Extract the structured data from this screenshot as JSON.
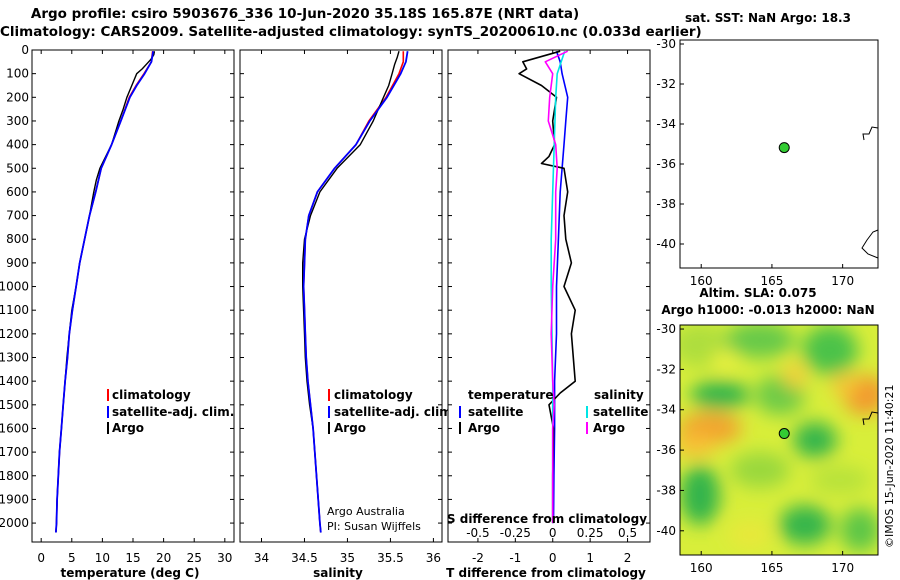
{
  "header": {
    "title_line1": "Argo profile: csiro 5903676_336 10-Jun-2020 35.18S 165.87E (NRT data)",
    "title_line2": "Climatology: CARS2009. Satellite-adjusted climatology: synTS_20200610.nc (0.033d earlier)"
  },
  "colors": {
    "climatology": "#ff0000",
    "satellite": "#0000ff",
    "argo": "#000000",
    "s_satellite": "#00e5e5",
    "s_argo": "#ff00ff",
    "float_marker": "#33cc33"
  },
  "credits": {
    "line1": "Argo Australia",
    "line2": "PI: Susan Wijffels"
  },
  "watermark": "©IMOS 15-Jun-2020 11:40:21",
  "chart_data": [
    {
      "type": "line",
      "name": "temperature-profile",
      "xlabel": "temperature (deg C)",
      "ylabel": "",
      "xlim": [
        -1.5,
        31.5
      ],
      "ylim": [
        0,
        2080
      ],
      "xticks": [
        0,
        5,
        10,
        15,
        20,
        25,
        30
      ],
      "yticks": [
        0,
        100,
        200,
        300,
        400,
        500,
        600,
        700,
        800,
        900,
        1000,
        1100,
        1200,
        1300,
        1400,
        1500,
        1600,
        1700,
        1800,
        1900,
        2000
      ],
      "legend": [
        "climatology",
        "satellite-adj. clim.",
        "Argo"
      ],
      "series": [
        {
          "name": "climatology",
          "color": "#ff0000",
          "depth": [
            5,
            50,
            100,
            150,
            200,
            300,
            400,
            500,
            600,
            700,
            800,
            900,
            1000,
            1100,
            1200,
            1300,
            1400,
            1500,
            1600,
            1700,
            1800,
            1900,
            2000,
            2040
          ],
          "values": [
            18.2,
            18.0,
            16.8,
            15.5,
            14.4,
            13.0,
            11.5,
            9.8,
            8.9,
            7.9,
            7.1,
            6.3,
            5.7,
            5.1,
            4.6,
            4.3,
            3.9,
            3.6,
            3.3,
            3.0,
            2.8,
            2.6,
            2.5,
            2.4
          ]
        },
        {
          "name": "satellite-adj. clim.",
          "color": "#0000ff",
          "depth": [
            5,
            50,
            100,
            150,
            200,
            300,
            400,
            500,
            600,
            700,
            800,
            900,
            1000,
            1100,
            1200,
            1300,
            1400,
            1500,
            1600,
            1700,
            1800,
            1900,
            2000,
            2040
          ],
          "values": [
            18.3,
            18.0,
            16.9,
            15.6,
            14.5,
            13.0,
            11.5,
            9.8,
            8.9,
            7.9,
            7.1,
            6.3,
            5.7,
            5.1,
            4.6,
            4.3,
            3.9,
            3.6,
            3.3,
            3.0,
            2.8,
            2.6,
            2.5,
            2.4
          ]
        },
        {
          "name": "Argo",
          "color": "#000000",
          "depth": [
            5,
            20,
            40,
            60,
            80,
            100,
            150,
            200,
            250,
            300,
            400,
            500,
            550,
            600,
            700,
            800,
            900,
            1000,
            1100,
            1200,
            1300,
            1400,
            1500,
            1600,
            1700,
            1800,
            1900,
            2000,
            2040
          ],
          "values": [
            18.5,
            18.4,
            17.9,
            17.2,
            16.5,
            15.6,
            14.8,
            14.0,
            13.4,
            12.7,
            11.5,
            9.6,
            9.0,
            8.6,
            7.9,
            7.1,
            6.3,
            5.7,
            5.0,
            4.6,
            4.2,
            3.9,
            3.6,
            3.3,
            3.0,
            2.8,
            2.6,
            2.5,
            2.4
          ]
        }
      ]
    },
    {
      "type": "line",
      "name": "salinity-profile",
      "xlabel": "salinity",
      "xlim": [
        33.75,
        36.1
      ],
      "ylim": [
        0,
        2080
      ],
      "xticks": [
        34,
        34.5,
        35,
        35.5,
        36
      ],
      "legend": [
        "climatology",
        "satellite-adj. clim.",
        "Argo"
      ],
      "series": [
        {
          "name": "climatology",
          "color": "#ff0000",
          "depth": [
            5,
            50,
            100,
            200,
            300,
            400,
            500,
            600,
            700,
            800,
            900,
            1000,
            1100,
            1200,
            1300,
            1400,
            1500,
            1600,
            1700,
            1800,
            1900,
            2000,
            2040
          ],
          "values": [
            35.65,
            35.65,
            35.6,
            35.45,
            35.25,
            35.1,
            34.85,
            34.65,
            34.55,
            34.51,
            34.5,
            34.49,
            34.5,
            34.51,
            34.52,
            34.54,
            34.57,
            34.6,
            34.62,
            34.64,
            34.66,
            34.68,
            34.69
          ]
        },
        {
          "name": "satellite-adj. clim.",
          "color": "#0000ff",
          "depth": [
            5,
            50,
            100,
            200,
            300,
            400,
            500,
            600,
            700,
            800,
            900,
            1000,
            1100,
            1200,
            1300,
            1400,
            1500,
            1600,
            1700,
            1800,
            1900,
            2000,
            2040
          ],
          "values": [
            35.7,
            35.68,
            35.62,
            35.46,
            35.26,
            35.1,
            34.85,
            34.65,
            34.55,
            34.51,
            34.5,
            34.49,
            34.5,
            34.51,
            34.52,
            34.54,
            34.57,
            34.6,
            34.62,
            34.64,
            34.66,
            34.68,
            34.69
          ]
        },
        {
          "name": "Argo",
          "color": "#000000",
          "depth": [
            5,
            30,
            60,
            100,
            150,
            200,
            300,
            400,
            500,
            600,
            700,
            800,
            900,
            1000,
            1100,
            1200,
            1300,
            1400,
            1500,
            1600,
            1700,
            1800,
            1900,
            2000,
            2040
          ],
          "values": [
            35.6,
            35.58,
            35.55,
            35.52,
            35.48,
            35.42,
            35.3,
            35.15,
            34.88,
            34.68,
            34.57,
            34.5,
            34.48,
            34.48,
            34.49,
            34.5,
            34.51,
            34.53,
            34.56,
            34.6,
            34.62,
            34.64,
            34.66,
            34.68,
            34.69
          ]
        }
      ]
    },
    {
      "type": "line",
      "name": "difference-profile",
      "xlabel": "T difference from climatology",
      "xlabel_top": "S difference from climatology",
      "xlim": [
        -2.8,
        2.6
      ],
      "ylim": [
        0,
        2080
      ],
      "xticks": [
        -2,
        -1,
        0,
        1,
        2
      ],
      "xticklabels_top": [
        "-0.5",
        "-0.25",
        "0",
        "0.25",
        "0.5"
      ],
      "legend_left_title": "temperature",
      "legend_right_title": "salinity",
      "legend": [
        "satellite",
        "Argo",
        "satellite",
        "Argo"
      ],
      "series": [
        {
          "name": "T satellite",
          "color": "#0000ff",
          "depth": [
            5,
            50,
            100,
            200,
            300,
            400,
            500,
            600,
            800,
            1000,
            1200,
            1400,
            1600,
            1800,
            2000
          ],
          "values": [
            0.1,
            0.2,
            0.25,
            0.4,
            0.35,
            0.3,
            0.25,
            0.2,
            0.15,
            0.1,
            0.1,
            0.05,
            0.05,
            0.03,
            0.02
          ]
        },
        {
          "name": "T Argo",
          "color": "#000000",
          "depth": [
            5,
            50,
            80,
            100,
            150,
            200,
            300,
            400,
            450,
            480,
            500,
            600,
            700,
            800,
            900,
            1000,
            1100,
            1200,
            1300,
            1400,
            1450,
            1500,
            1600,
            1800,
            2000
          ],
          "values": [
            0.2,
            -0.8,
            -0.7,
            -0.9,
            -0.3,
            0.1,
            0.0,
            0.05,
            -0.1,
            -0.3,
            0.3,
            0.4,
            0.3,
            0.35,
            0.5,
            0.3,
            0.6,
            0.5,
            0.55,
            0.6,
            0.2,
            -0.1,
            0.02,
            0.0,
            0.0
          ]
        },
        {
          "name": "S satellite",
          "color": "#00e5e5",
          "depth": [
            5,
            100,
            200,
            400,
            600,
            800,
            1000,
            1200,
            1400,
            1600,
            1800,
            2000
          ],
          "values": [
            0.08,
            0.03,
            0.02,
            0.01,
            0.0,
            -0.01,
            -0.01,
            -0.005,
            0.0,
            0.0,
            0.0,
            0.0
          ]
        },
        {
          "name": "S Argo",
          "color": "#ff00ff",
          "depth": [
            5,
            20,
            50,
            100,
            200,
            300,
            400,
            500,
            600,
            800,
            1000,
            1200,
            1400,
            1500,
            1600,
            1800,
            2000
          ],
          "values": [
            0.1,
            0.05,
            -0.05,
            0.0,
            -0.02,
            -0.03,
            0.02,
            0.03,
            0.02,
            0.02,
            0.0,
            -0.01,
            0.0,
            0.01,
            0.0,
            0.0,
            0.0
          ]
        }
      ]
    },
    {
      "type": "scatter",
      "name": "sst-map",
      "title": "sat. SST: NaN Argo: 18.3",
      "xlim": [
        158.5,
        172.5
      ],
      "ylim": [
        -41.2,
        -29.8
      ],
      "xticks": [
        160,
        165,
        170
      ],
      "yticks": [
        -30,
        -32,
        -34,
        -36,
        -38,
        -40
      ],
      "points": [
        {
          "lon": 165.87,
          "lat": -35.18
        }
      ]
    },
    {
      "type": "heatmap",
      "name": "sla-map",
      "title_line1": "Altim. SLA: 0.075",
      "title_line2": "Argo h1000: -0.013 h2000: NaN",
      "xlim": [
        158.5,
        172.5
      ],
      "ylim": [
        -41.2,
        -29.8
      ],
      "xticks": [
        160,
        165,
        170
      ],
      "yticks": [
        -30,
        -32,
        -34,
        -36,
        -38,
        -40
      ],
      "points": [
        {
          "lon": 165.87,
          "lat": -35.18
        }
      ]
    }
  ]
}
